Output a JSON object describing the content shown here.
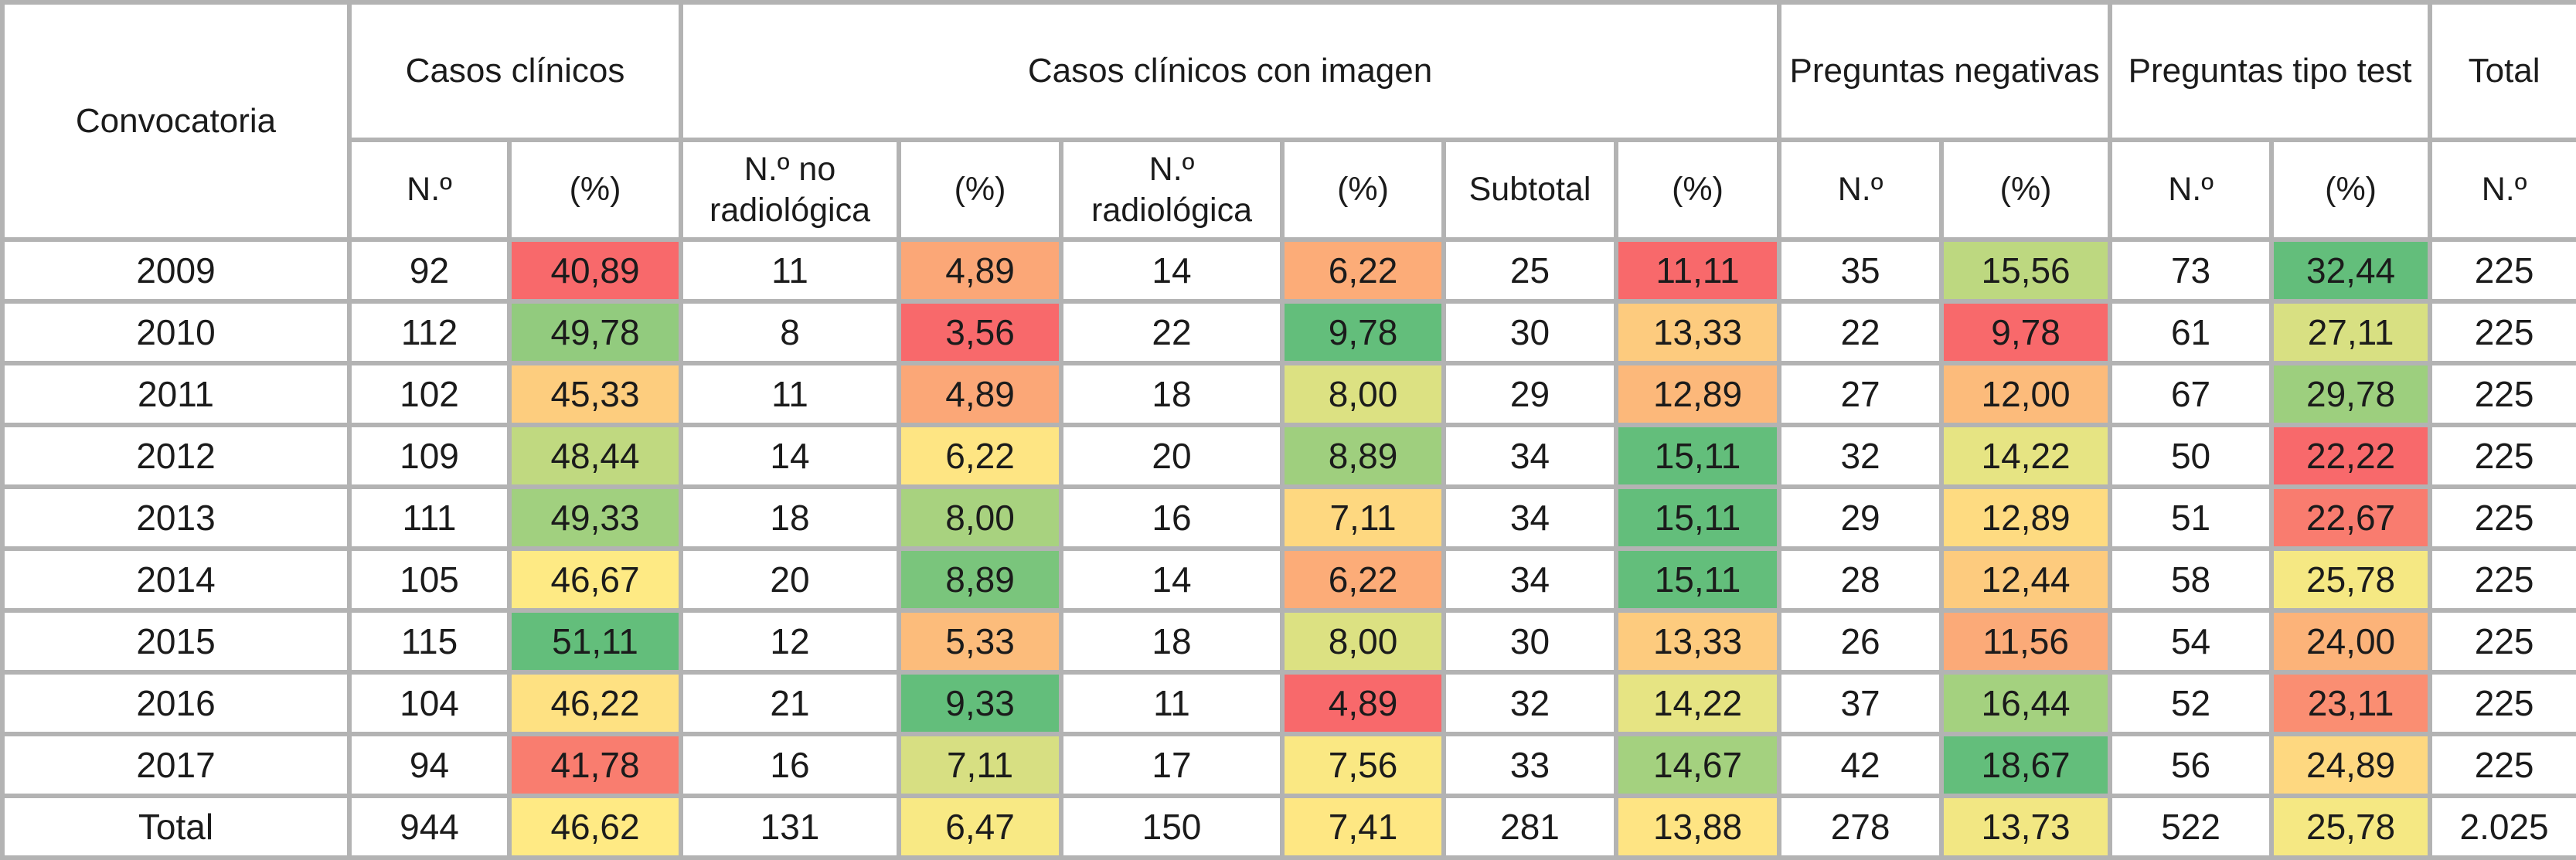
{
  "colors": {
    "border": "#b3b3b3",
    "text": "#1b1b1b",
    "heatmap_scale_min": "#F8696B",
    "heatmap_scale_mid": "#FFEB84",
    "heatmap_scale_max": "#63BE7B"
  },
  "table": {
    "header": {
      "convocatoria": "Convocatoria",
      "groups": [
        {
          "label": "Casos clínicos",
          "colspan": 2
        },
        {
          "label": "Casos clínicos con imagen",
          "colspan": 6
        },
        {
          "label": "Preguntas negativas",
          "colspan": 2
        },
        {
          "label": "Preguntas tipo test",
          "colspan": 2
        },
        {
          "label": "Total",
          "colspan": 1
        }
      ],
      "subheaders": [
        "N.º",
        "(%)",
        "N.º no radiológica",
        "(%)",
        "N.º radiológica",
        "(%)",
        "Subtotal",
        "(%)",
        "N.º",
        "(%)",
        "N.º",
        "(%)",
        "N.º"
      ]
    },
    "rows": [
      {
        "label": "2009",
        "cells": [
          {
            "v": "92"
          },
          {
            "v": "40,89",
            "bg": "#F8696B"
          },
          {
            "v": "11"
          },
          {
            "v": "4,89",
            "bg": "#FBA777"
          },
          {
            "v": "14"
          },
          {
            "v": "6,22",
            "bg": "#FCAC78"
          },
          {
            "v": "25"
          },
          {
            "v": "11,11",
            "bg": "#F8696B"
          },
          {
            "v": "35"
          },
          {
            "v": "15,56",
            "bg": "#BDD880"
          },
          {
            "v": "73"
          },
          {
            "v": "32,44",
            "bg": "#63BE7B"
          },
          {
            "v": "225"
          }
        ]
      },
      {
        "label": "2010",
        "cells": [
          {
            "v": "112"
          },
          {
            "v": "49,78",
            "bg": "#92CB7E"
          },
          {
            "v": "8"
          },
          {
            "v": "3,56",
            "bg": "#F8696B"
          },
          {
            "v": "22"
          },
          {
            "v": "9,78",
            "bg": "#63BE7B"
          },
          {
            "v": "30"
          },
          {
            "v": "13,33",
            "bg": "#FDCB7E"
          },
          {
            "v": "22"
          },
          {
            "v": "9,78",
            "bg": "#F8696B"
          },
          {
            "v": "61"
          },
          {
            "v": "27,11",
            "bg": "#D8E082"
          },
          {
            "v": "225"
          }
        ]
      },
      {
        "label": "2011",
        "cells": [
          {
            "v": "102"
          },
          {
            "v": "45,33",
            "bg": "#FDCD7E"
          },
          {
            "v": "11"
          },
          {
            "v": "4,89",
            "bg": "#FBA777"
          },
          {
            "v": "18"
          },
          {
            "v": "8,00",
            "bg": "#DCE182"
          },
          {
            "v": "29"
          },
          {
            "v": "12,89",
            "bg": "#FCB87A"
          },
          {
            "v": "27"
          },
          {
            "v": "12,00",
            "bg": "#FCBB7B"
          },
          {
            "v": "67"
          },
          {
            "v": "29,78",
            "bg": "#9DCF7E"
          },
          {
            "v": "225"
          }
        ]
      },
      {
        "label": "2012",
        "cells": [
          {
            "v": "109"
          },
          {
            "v": "48,44",
            "bg": "#C0D980"
          },
          {
            "v": "14"
          },
          {
            "v": "6,22",
            "bg": "#FEE583"
          },
          {
            "v": "20"
          },
          {
            "v": "8,89",
            "bg": "#9FCF7E"
          },
          {
            "v": "34"
          },
          {
            "v": "15,11",
            "bg": "#63BE7B"
          },
          {
            "v": "32"
          },
          {
            "v": "14,22",
            "bg": "#E6E483"
          },
          {
            "v": "50"
          },
          {
            "v": "22,22",
            "bg": "#F8696B"
          },
          {
            "v": "225"
          }
        ]
      },
      {
        "label": "2013",
        "cells": [
          {
            "v": "111"
          },
          {
            "v": "49,33",
            "bg": "#A1D07F"
          },
          {
            "v": "18"
          },
          {
            "v": "8,00",
            "bg": "#A8D27F"
          },
          {
            "v": "16"
          },
          {
            "v": "7,11",
            "bg": "#FED880"
          },
          {
            "v": "34"
          },
          {
            "v": "15,11",
            "bg": "#63BE7B"
          },
          {
            "v": "29"
          },
          {
            "v": "12,89",
            "bg": "#FEDB81"
          },
          {
            "v": "51"
          },
          {
            "v": "22,67",
            "bg": "#F97C6F"
          },
          {
            "v": "225"
          }
        ]
      },
      {
        "label": "2014",
        "cells": [
          {
            "v": "105"
          },
          {
            "v": "46,67",
            "bg": "#FEEA84"
          },
          {
            "v": "20"
          },
          {
            "v": "8,89",
            "bg": "#7AC57C"
          },
          {
            "v": "14"
          },
          {
            "v": "6,22",
            "bg": "#FCAC78"
          },
          {
            "v": "34"
          },
          {
            "v": "15,11",
            "bg": "#63BE7B"
          },
          {
            "v": "28"
          },
          {
            "v": "12,44",
            "bg": "#FDCB7E"
          },
          {
            "v": "58"
          },
          {
            "v": "25,78",
            "bg": "#F5E883"
          },
          {
            "v": "225"
          }
        ]
      },
      {
        "label": "2015",
        "cells": [
          {
            "v": "115"
          },
          {
            "v": "51,11",
            "bg": "#63BE7B"
          },
          {
            "v": "12"
          },
          {
            "v": "5,33",
            "bg": "#FCBC7B"
          },
          {
            "v": "18"
          },
          {
            "v": "8,00",
            "bg": "#DCE182"
          },
          {
            "v": "30"
          },
          {
            "v": "13,33",
            "bg": "#FDCB7E"
          },
          {
            "v": "26"
          },
          {
            "v": "11,56",
            "bg": "#FBAA78"
          },
          {
            "v": "54"
          },
          {
            "v": "24,00",
            "bg": "#FCB379"
          },
          {
            "v": "225"
          }
        ]
      },
      {
        "label": "2016",
        "cells": [
          {
            "v": "104"
          },
          {
            "v": "46,22",
            "bg": "#FEE182"
          },
          {
            "v": "21"
          },
          {
            "v": "9,33",
            "bg": "#63BE7B"
          },
          {
            "v": "11"
          },
          {
            "v": "4,89",
            "bg": "#F8696B"
          },
          {
            "v": "32"
          },
          {
            "v": "14,22",
            "bg": "#E6E483"
          },
          {
            "v": "37"
          },
          {
            "v": "16,44",
            "bg": "#A4D17F"
          },
          {
            "v": "52"
          },
          {
            "v": "23,11",
            "bg": "#FA8E72"
          },
          {
            "v": "225"
          }
        ]
      },
      {
        "label": "2017",
        "cells": [
          {
            "v": "94"
          },
          {
            "v": "41,78",
            "bg": "#F97D6F"
          },
          {
            "v": "16"
          },
          {
            "v": "7,11",
            "bg": "#D7DF82"
          },
          {
            "v": "17"
          },
          {
            "v": "7,56",
            "bg": "#FAE883"
          },
          {
            "v": "33"
          },
          {
            "v": "14,67",
            "bg": "#A4D17F"
          },
          {
            "v": "42"
          },
          {
            "v": "18,67",
            "bg": "#63BE7B"
          },
          {
            "v": "56"
          },
          {
            "v": "24,89",
            "bg": "#FED880"
          },
          {
            "v": "225"
          }
        ]
      },
      {
        "label": "Total",
        "cells": [
          {
            "v": "944"
          },
          {
            "v": "46,62",
            "bg": "#FFEA84"
          },
          {
            "v": "131"
          },
          {
            "v": "6,47",
            "bg": "#F8E984"
          },
          {
            "v": "150"
          },
          {
            "v": "7,41",
            "bg": "#FEE783"
          },
          {
            "v": "281"
          },
          {
            "v": "13,88",
            "bg": "#FEE483"
          },
          {
            "v": "278"
          },
          {
            "v": "13,73",
            "bg": "#F2E783"
          },
          {
            "v": "522"
          },
          {
            "v": "25,78",
            "bg": "#F5E883"
          },
          {
            "v": "2.025"
          }
        ]
      }
    ]
  }
}
